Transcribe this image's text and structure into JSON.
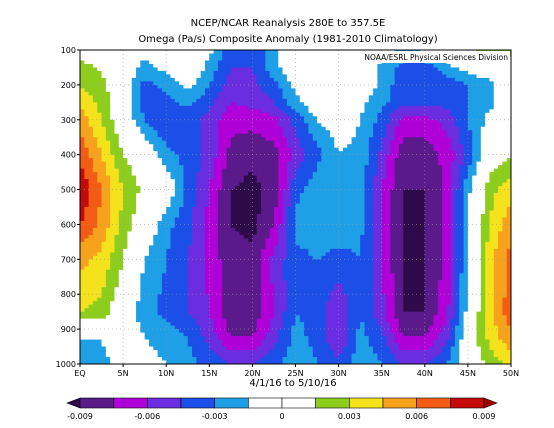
{
  "header": {
    "title": "NCEP/NCAR Reanalysis 280E to 357.5E",
    "subtitle": "Omega (Pa/s) Composite Anomaly (1981-2010 Climatology)"
  },
  "credit": "NOAA/ESRL Physical Sciences Division",
  "date_range": "4/1/16  to 5/10/16",
  "chart_data": {
    "type": "heatmap",
    "title": "NCEP/NCAR Reanalysis 280E to 357.5E",
    "subtitle": "Omega (Pa/s) Composite Anomaly (1981-2010 Climatology)",
    "xlabel": "4/1/16  to 5/10/16",
    "ylabel": "",
    "x_ticks": [
      "EQ",
      "5N",
      "10N",
      "15N",
      "20N",
      "25N",
      "30N",
      "35N",
      "40N",
      "45N",
      "50N"
    ],
    "x_tick_values": [
      0,
      5,
      10,
      15,
      20,
      25,
      30,
      35,
      40,
      45,
      50
    ],
    "y_ticks": [
      "100",
      "200",
      "300",
      "400",
      "500",
      "600",
      "700",
      "800",
      "900",
      "1000"
    ],
    "y_tick_values": [
      100,
      200,
      300,
      400,
      500,
      600,
      700,
      800,
      900,
      1000
    ],
    "xlim": [
      0,
      50
    ],
    "ylim": [
      1000,
      100
    ],
    "grid": true,
    "colorbar": {
      "labels": [
        "-0.009",
        "-0.006",
        "-0.003",
        "0",
        "0.003",
        "0.006",
        "0.009"
      ],
      "label_values": [
        -0.009,
        -0.006,
        -0.003,
        0,
        0.003,
        0.006,
        0.009
      ],
      "boundaries": [
        -0.009,
        -0.0075,
        -0.006,
        -0.0045,
        -0.003,
        -0.0015,
        0,
        0.0015,
        0.003,
        0.0045,
        0.006,
        0.0075,
        0.009
      ],
      "colors": [
        "#2f0b4a",
        "#5a1a8a",
        "#b000d8",
        "#6a2ee0",
        "#1c4ee8",
        "#1fa0e6",
        "#ffffff",
        "#ffffff",
        "#8ccd1e",
        "#f4e31c",
        "#f6a21c",
        "#f25c14",
        "#c50a0a",
        "#a00000"
      ],
      "color_under": "#2f0b4a",
      "color_over": "#a00000"
    },
    "x_centers": [
      0,
      2.5,
      5,
      7.5,
      10,
      12.5,
      15,
      17.5,
      20,
      22.5,
      25,
      27.5,
      30,
      32.5,
      35,
      37.5,
      40,
      42.5,
      45,
      47.5,
      50
    ],
    "p_levels": [
      100,
      150,
      200,
      250,
      300,
      400,
      500,
      600,
      700,
      850,
      925,
      1000
    ],
    "values": [
      [
        0.001,
        0.0005,
        0,
        -0.001,
        -0.001,
        -0.001,
        -0.001,
        -0.0045,
        -0.0045,
        -0.002,
        0,
        0,
        0,
        0,
        -0.0005,
        -0.0018,
        -0.001,
        0,
        0.0015,
        0.002,
        0.002
      ],
      [
        0.002,
        0.0012,
        0,
        -0.002,
        -0.001,
        0,
        -0.002,
        -0.0045,
        -0.0045,
        -0.002,
        0,
        0,
        0,
        0,
        -0.002,
        -0.0035,
        -0.004,
        -0.002,
        -0.001,
        0,
        0.0008
      ],
      [
        0.003,
        0.002,
        0,
        -0.0035,
        -0.0025,
        -0.001,
        -0.003,
        -0.0052,
        -0.005,
        -0.0035,
        -0.001,
        0,
        0,
        0,
        -0.002,
        -0.004,
        -0.004,
        -0.004,
        -0.003,
        -0.002,
        0
      ],
      [
        0.004,
        0.0025,
        -0.0005,
        -0.004,
        -0.0035,
        -0.0025,
        -0.004,
        -0.006,
        -0.0055,
        -0.0045,
        -0.002,
        0,
        0,
        -0.001,
        -0.0025,
        -0.0042,
        -0.004,
        -0.004,
        -0.003,
        -0.002,
        0
      ],
      [
        0.0055,
        0.003,
        0,
        -0.003,
        -0.0045,
        -0.004,
        -0.005,
        -0.007,
        -0.007,
        -0.0065,
        -0.004,
        -0.0015,
        -0.0005,
        -0.0015,
        -0.0035,
        -0.0065,
        -0.0065,
        -0.0055,
        -0.003,
        -0.001,
        0
      ],
      [
        0.007,
        0.0045,
        0.0015,
        0,
        -0.0025,
        -0.0035,
        -0.005,
        -0.008,
        -0.0085,
        -0.008,
        -0.0055,
        -0.0035,
        -0.0015,
        -0.002,
        -0.005,
        -0.0085,
        -0.0085,
        -0.007,
        -0.004,
        0,
        0.0015
      ],
      [
        0.009,
        0.006,
        0.003,
        0.001,
        0,
        -0.0035,
        -0.006,
        -0.009,
        -0.0095,
        -0.0085,
        -0.0035,
        -0.002,
        -0.0015,
        -0.002,
        -0.006,
        -0.009,
        -0.009,
        -0.007,
        -0.002,
        0.0025,
        0.004
      ],
      [
        0.0075,
        0.0055,
        0.0025,
        0,
        -0.0025,
        -0.004,
        -0.0065,
        -0.009,
        -0.0095,
        -0.0075,
        -0.0025,
        -0.002,
        -0.002,
        -0.0025,
        -0.006,
        -0.0092,
        -0.0092,
        -0.007,
        -0.0015,
        0.003,
        0.0055
      ],
      [
        0.005,
        0.004,
        0.0015,
        -0.0015,
        -0.003,
        -0.0045,
        -0.0065,
        -0.0085,
        -0.0085,
        -0.0055,
        -0.0035,
        -0.003,
        -0.0035,
        -0.003,
        -0.006,
        -0.0092,
        -0.0092,
        -0.007,
        -0.0015,
        0.004,
        0.0065
      ],
      [
        0.003,
        0.0025,
        0,
        -0.0025,
        -0.0035,
        -0.0045,
        -0.006,
        -0.0085,
        -0.0085,
        -0.006,
        -0.003,
        -0.0035,
        -0.006,
        -0.003,
        -0.0055,
        -0.009,
        -0.009,
        -0.0065,
        -0.001,
        0.004,
        0.007
      ],
      [
        -0.0015,
        -0.0015,
        0,
        -0.0015,
        -0.002,
        -0.003,
        -0.005,
        -0.0075,
        -0.0075,
        -0.005,
        -0.0025,
        -0.0035,
        -0.006,
        -0.0025,
        -0.004,
        -0.0075,
        -0.0075,
        -0.005,
        0,
        0.0035,
        0.0055
      ],
      [
        -0.0025,
        -0.002,
        -0.001,
        -0.001,
        -0.0015,
        -0.0025,
        -0.0035,
        -0.0045,
        -0.0045,
        -0.0035,
        -0.002,
        -0.003,
        -0.004,
        -0.002,
        -0.003,
        -0.0045,
        -0.0045,
        -0.003,
        0,
        0.002,
        0.0035
      ]
    ]
  }
}
